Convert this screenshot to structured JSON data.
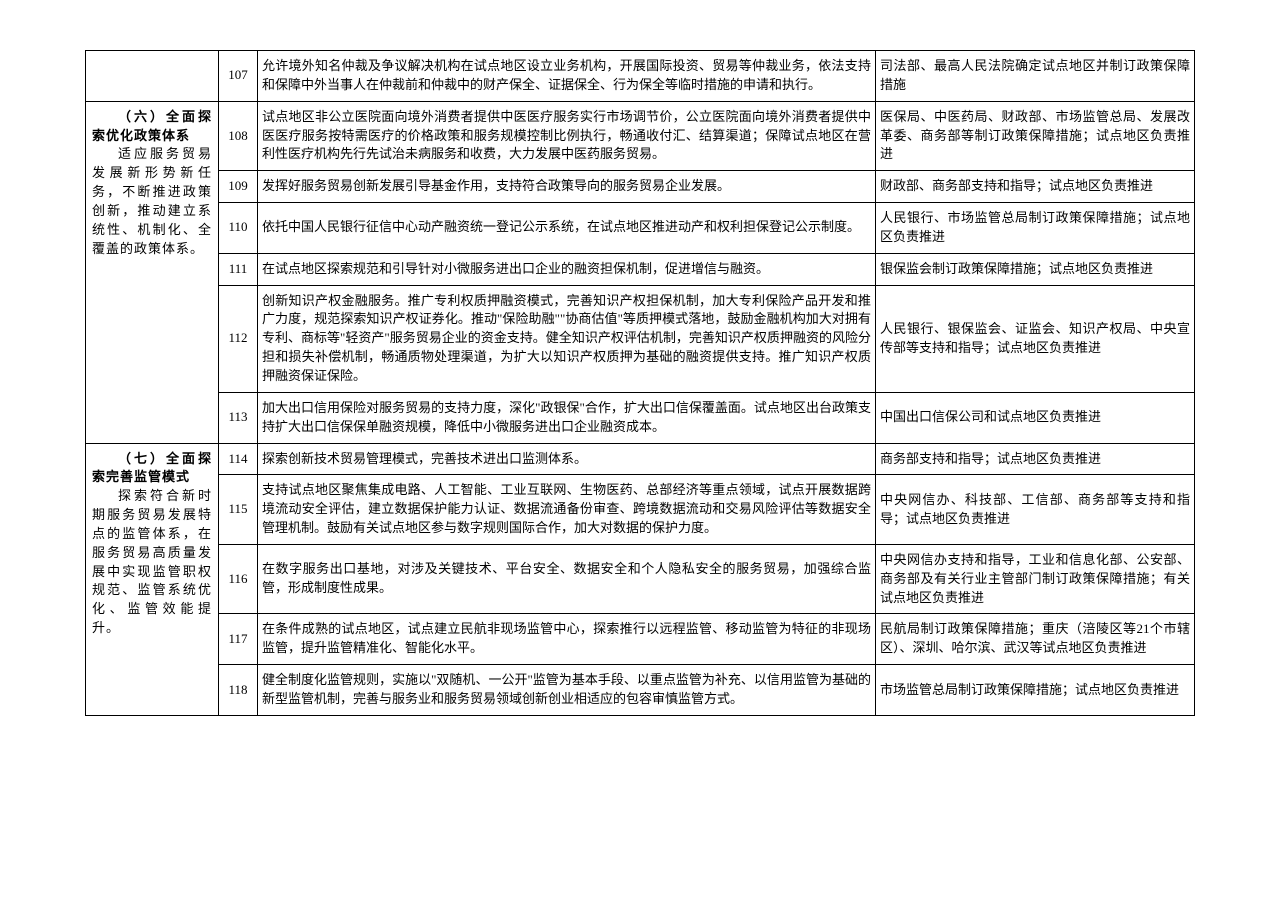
{
  "table": {
    "columns": {
      "section_width": 120,
      "num_width": 30,
      "dept_width": 310
    },
    "border_color": "#000000",
    "font_size": 13,
    "sections": [
      {
        "heading": "",
        "desc": "",
        "rowspan": 1,
        "show_cell": false,
        "rows": [
          {
            "num": "107",
            "task": "允许境外知名仲裁及争议解决机构在试点地区设立业务机构，开展国际投资、贸易等仲裁业务，依法支持和保障中外当事人在仲裁前和仲裁中的财产保全、证据保全、行为保全等临时措施的申请和执行。",
            "dept": "司法部、最高人民法院确定试点地区并制订政策保障措施"
          }
        ]
      },
      {
        "heading": "（六）全面探索优化政策体系",
        "desc": "适应服务贸易发展新形势新任务，不断推进政策创新，推动建立系统性、机制化、全覆盖的政策体系。",
        "rowspan": 6,
        "show_cell": true,
        "rows": [
          {
            "num": "108",
            "task": "试点地区非公立医院面向境外消费者提供中医医疗服务实行市场调节价，公立医院面向境外消费者提供中医医疗服务按特需医疗的价格政策和服务规模控制比例执行，畅通收付汇、结算渠道；保障试点地区在营利性医疗机构先行先试治未病服务和收费，大力发展中医药服务贸易。",
            "dept": "医保局、中医药局、财政部、市场监管总局、发展改革委、商务部等制订政策保障措施；试点地区负责推进"
          },
          {
            "num": "109",
            "task": "发挥好服务贸易创新发展引导基金作用，支持符合政策导向的服务贸易企业发展。",
            "dept": "财政部、商务部支持和指导；试点地区负责推进"
          },
          {
            "num": "110",
            "task": "依托中国人民银行征信中心动产融资统一登记公示系统，在试点地区推进动产和权利担保登记公示制度。",
            "dept": "人民银行、市场监管总局制订政策保障措施；试点地区负责推进"
          },
          {
            "num": "111",
            "task": "在试点地区探索规范和引导针对小微服务进出口企业的融资担保机制，促进增信与融资。",
            "dept": "银保监会制订政策保障措施；试点地区负责推进"
          },
          {
            "num": "112",
            "task": "创新知识产权金融服务。推广专利权质押融资模式，完善知识产权担保机制，加大专利保险产品开发和推广力度，规范探索知识产权证券化。推动\"保险助融\"\"协商估值\"等质押模式落地，鼓励金融机构加大对拥有专利、商标等\"轻资产\"服务贸易企业的资金支持。健全知识产权评估机制，完善知识产权质押融资的风险分担和损失补偿机制，畅通质物处理渠道，为扩大以知识产权质押为基础的融资提供支持。推广知识产权质押融资保证保险。",
            "dept": "人民银行、银保监会、证监会、知识产权局、中央宣传部等支持和指导；试点地区负责推进"
          },
          {
            "num": "113",
            "task": "加大出口信用保险对服务贸易的支持力度，深化\"政银保\"合作，扩大出口信保覆盖面。试点地区出台政策支持扩大出口信保保单融资规模，降低中小微服务进出口企业融资成本。",
            "dept": "中国出口信保公司和试点地区负责推进"
          }
        ]
      },
      {
        "heading": "（七）全面探索完善监管模式",
        "desc": "探索符合新时期服务贸易发展特点的监管体系，在服务贸易高质量发展中实现监管职权规范、监管系统优化、监管效能提升。",
        "rowspan": 5,
        "show_cell": true,
        "rows": [
          {
            "num": "114",
            "task": "探索创新技术贸易管理模式，完善技术进出口监测体系。",
            "dept": "商务部支持和指导；试点地区负责推进"
          },
          {
            "num": "115",
            "task": "支持试点地区聚焦集成电路、人工智能、工业互联网、生物医药、总部经济等重点领域，试点开展数据跨境流动安全评估，建立数据保护能力认证、数据流通备份审查、跨境数据流动和交易风险评估等数据安全管理机制。鼓励有关试点地区参与数字规则国际合作，加大对数据的保护力度。",
            "dept": "中央网信办、科技部、工信部、商务部等支持和指导；试点地区负责推进"
          },
          {
            "num": "116",
            "task": "在数字服务出口基地，对涉及关键技术、平台安全、数据安全和个人隐私安全的服务贸易，加强综合监管，形成制度性成果。",
            "dept": "中央网信办支持和指导，工业和信息化部、公安部、商务部及有关行业主管部门制订政策保障措施；有关试点地区负责推进"
          },
          {
            "num": "117",
            "task": "在条件成熟的试点地区，试点建立民航非现场监管中心，探索推行以远程监管、移动监管为特征的非现场监管，提升监管精准化、智能化水平。",
            "dept": "民航局制订政策保障措施；重庆（涪陵区等21个市辖区）、深圳、哈尔滨、武汉等试点地区负责推进"
          },
          {
            "num": "118",
            "task": "健全制度化监管规则，实施以\"双随机、一公开\"监管为基本手段、以重点监管为补充、以信用监管为基础的新型监管机制，完善与服务业和服务贸易领域创新创业相适应的包容审慎监管方式。",
            "dept": "市场监管总局制订政策保障措施；试点地区负责推进"
          }
        ]
      }
    ]
  }
}
